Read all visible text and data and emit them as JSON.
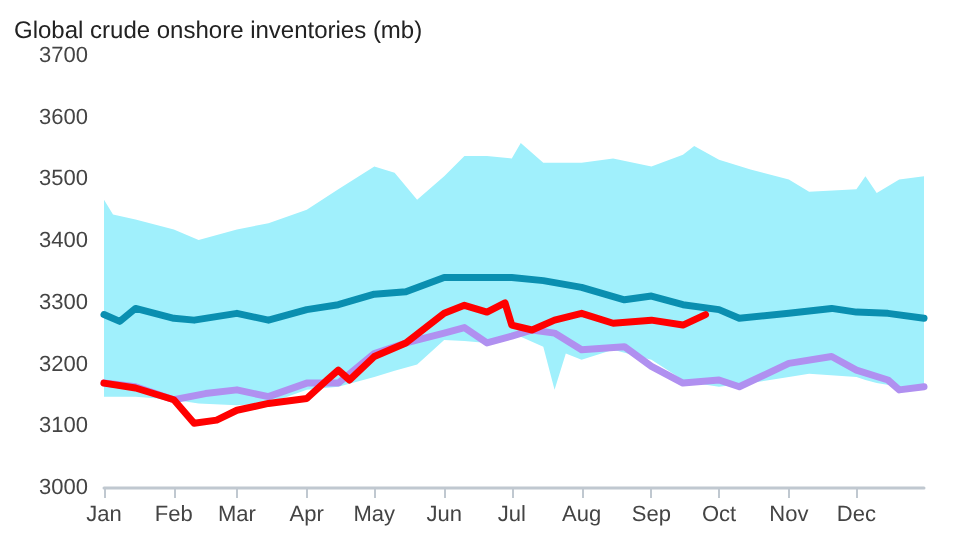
{
  "chart_data": {
    "type": "line",
    "title": "Global crude onshore inventories (mb)",
    "ylim": [
      3000,
      3700
    ],
    "yticks": [
      3000,
      3100,
      3200,
      3300,
      3400,
      3500,
      3600,
      3700
    ],
    "xlim": [
      "--01-01",
      "--12-31"
    ],
    "xticks": [
      {
        "value": "--01-01",
        "label": "Jan"
      },
      {
        "value": "--02-01",
        "label": "Feb"
      },
      {
        "value": "--03-01",
        "label": "Mar"
      },
      {
        "value": "--04-01",
        "label": "Apr"
      },
      {
        "value": "--05-01",
        "label": "May"
      },
      {
        "value": "--06-01",
        "label": "Jun"
      },
      {
        "value": "--07-01",
        "label": "Jul"
      },
      {
        "value": "--08-01",
        "label": "Aug"
      },
      {
        "value": "--09-01",
        "label": "Sep"
      },
      {
        "value": "--10-01",
        "label": "Oct"
      },
      {
        "value": "--11-01",
        "label": "Nov"
      },
      {
        "value": "--12-01",
        "label": "Dec"
      }
    ],
    "grid": false,
    "marker": "none",
    "line_style": "solid",
    "series": [
      {
        "type": "area",
        "color": "#a0f0fc",
        "x": [
          "--01-01",
          "--01-05",
          "--01-15",
          "--02-01",
          "--02-12",
          "--03-01",
          "--03-15",
          "--04-01",
          "--04-15",
          "--05-01",
          "--05-10",
          "--05-20",
          "--06-01",
          "--06-10",
          "--06-20",
          "--07-01",
          "--07-05",
          "--07-15",
          "--07-20",
          "--07-25",
          "--08-01",
          "--08-15",
          "--09-01",
          "--09-15",
          "--09-20",
          "--10-01",
          "--10-15",
          "--11-01",
          "--11-10",
          "--12-01",
          "--12-05",
          "--12-10",
          "--12-20",
          "--12-31"
        ],
        "values": [
          null,
          null,
          null,
          null,
          null,
          null,
          null,
          null,
          null,
          null,
          null,
          null,
          null,
          null,
          null,
          null,
          null,
          null,
          null,
          null,
          null,
          null,
          null,
          null,
          null,
          null,
          null,
          null,
          null,
          null,
          null,
          null,
          null,
          null
        ],
        "upper": [
          3467,
          3443,
          3435,
          3419,
          3402,
          3419,
          3429,
          3451,
          3484,
          3521,
          3511,
          3467,
          3505,
          3538,
          3538,
          3534,
          3559,
          3527,
          3527,
          3527,
          3527,
          3534,
          3521,
          3540,
          3554,
          3532,
          3516,
          3500,
          3480,
          3484,
          3505,
          3478,
          3500,
          3505
        ],
        "lower": [
          3148,
          3148,
          3148,
          3143,
          3137,
          3134,
          3137,
          3159,
          3164,
          3180,
          3190,
          3200,
          3240,
          3238,
          3235,
          3251,
          3245,
          3229,
          3159,
          3218,
          3208,
          3224,
          3208,
          3175,
          3170,
          3164,
          3170,
          3180,
          3185,
          3180,
          3175,
          3170,
          3164,
          3164
        ]
      },
      {
        "color": "#0a8fb0",
        "x": [
          "--01-01",
          "--01-08",
          "--01-15",
          "--02-01",
          "--02-10",
          "--03-01",
          "--03-15",
          "--04-01",
          "--04-15",
          "--05-01",
          "--05-15",
          "--06-01",
          "--06-15",
          "--07-01",
          "--07-15",
          "--08-01",
          "--08-20",
          "--09-01",
          "--09-15",
          "--10-01",
          "--10-10",
          "--11-01",
          "--11-20",
          "--12-01",
          "--12-15",
          "--12-31"
        ],
        "values": [
          3281,
          3270,
          3291,
          3275,
          3272,
          3283,
          3272,
          3289,
          3297,
          3314,
          3318,
          3341,
          3341,
          3341,
          3336,
          3325,
          3305,
          3311,
          3297,
          3289,
          3275,
          3283,
          3291,
          3285,
          3283,
          3275
        ]
      },
      {
        "color": "#b090f0",
        "x": [
          "--01-01",
          "--01-15",
          "--02-01",
          "--02-15",
          "--03-01",
          "--03-15",
          "--04-01",
          "--04-15",
          "--05-01",
          "--05-15",
          "--06-01",
          "--06-10",
          "--06-20",
          "--07-01",
          "--07-10",
          "--07-20",
          "--08-01",
          "--08-20",
          "--09-01",
          "--09-15",
          "--10-01",
          "--10-10",
          "--11-01",
          "--11-20",
          "--12-01",
          "--12-15",
          "--12-20",
          "--12-31"
        ],
        "values": [
          3170,
          3164,
          3143,
          3153,
          3159,
          3148,
          3170,
          3170,
          3218,
          3235,
          3251,
          3260,
          3235,
          3246,
          3256,
          3251,
          3224,
          3229,
          3197,
          3170,
          3175,
          3164,
          3202,
          3213,
          3191,
          3175,
          3159,
          3164
        ]
      },
      {
        "color": "#ff0000",
        "x": [
          "--01-01",
          "--01-15",
          "--02-01",
          "--02-10",
          "--02-20",
          "--03-01",
          "--03-15",
          "--04-01",
          "--04-10",
          "--04-15",
          "--04-20",
          "--05-01",
          "--05-15",
          "--06-01",
          "--06-10",
          "--06-20",
          "--06-28",
          "--07-01",
          "--07-10",
          "--07-20",
          "--08-01",
          "--08-15",
          "--09-01",
          "--09-15",
          "--09-25"
        ],
        "values": [
          3170,
          3162,
          3143,
          3105,
          3110,
          3126,
          3137,
          3145,
          3175,
          3191,
          3175,
          3213,
          3235,
          3283,
          3296,
          3285,
          3300,
          3264,
          3256,
          3272,
          3283,
          3267,
          3272,
          3264,
          3281
        ]
      }
    ]
  }
}
